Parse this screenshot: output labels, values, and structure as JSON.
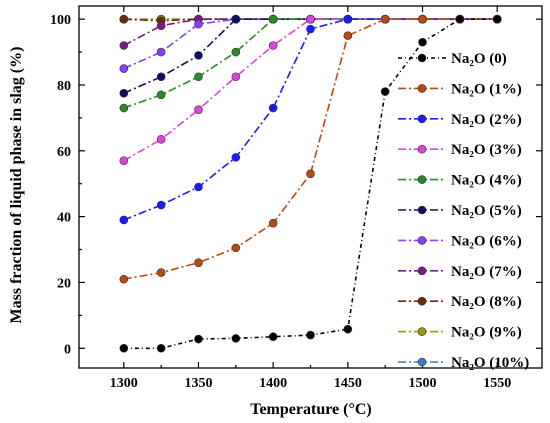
{
  "chart_data": {
    "type": "line",
    "title": "",
    "xlabel": "Temperature (°C)",
    "ylabel": "Mass fraction of liquid phase in slag (%)",
    "xlim": [
      1270,
      1580
    ],
    "ylim": [
      -6,
      104
    ],
    "xticks": [
      1300,
      1350,
      1400,
      1450,
      1500,
      1550
    ],
    "yticks": [
      0,
      20,
      40,
      60,
      80,
      100
    ],
    "legend_placement": "right",
    "grid": false,
    "series": [
      {
        "name": "Na₂O (0)",
        "color": "#000000",
        "dash": "4 3 1 3",
        "x": [
          1300,
          1325,
          1350,
          1375,
          1400,
          1425,
          1450,
          1475,
          1500,
          1525,
          1550
        ],
        "y": [
          0,
          0,
          2.8,
          3,
          3.5,
          4,
          5.8,
          78,
          93,
          100,
          100
        ]
      },
      {
        "name": "Na₂O (1%)",
        "color": "#b84a10",
        "dash": "8 3 2 3",
        "x": [
          1300,
          1325,
          1350,
          1375,
          1400,
          1425,
          1450,
          1475,
          1500,
          1525,
          1550
        ],
        "y": [
          21,
          23,
          26,
          30.5,
          38,
          53,
          95,
          100,
          100,
          100,
          100
        ]
      },
      {
        "name": "Na₂O (2%)",
        "color": "#1a1aff",
        "dash": "8 3 2 3",
        "x": [
          1300,
          1325,
          1350,
          1375,
          1400,
          1425,
          1450,
          1475,
          1500,
          1525,
          1550
        ],
        "y": [
          39,
          43.5,
          49,
          58,
          73,
          97,
          100,
          100,
          100,
          100,
          100
        ]
      },
      {
        "name": "Na₂O (3%)",
        "color": "#dd44dd",
        "dash": "8 3 2 3",
        "x": [
          1300,
          1325,
          1350,
          1375,
          1400,
          1425,
          1450,
          1475,
          1500,
          1525,
          1550
        ],
        "y": [
          57,
          63.5,
          72.5,
          82.5,
          92,
          100,
          100,
          100,
          100,
          100,
          100
        ]
      },
      {
        "name": "Na₂O (4%)",
        "color": "#2a8a2a",
        "dash": "8 3 2 3",
        "x": [
          1300,
          1325,
          1350,
          1375,
          1400,
          1425,
          1450,
          1475,
          1500,
          1525,
          1550
        ],
        "y": [
          73,
          77,
          82.5,
          90,
          100,
          100,
          100,
          100,
          100,
          100,
          100
        ]
      },
      {
        "name": "Na₂O (5%)",
        "color": "#101060",
        "dash": "8 3 2 3",
        "x": [
          1300,
          1325,
          1350,
          1375,
          1400,
          1425,
          1450,
          1475,
          1500,
          1525,
          1550
        ],
        "y": [
          77.5,
          82.5,
          89,
          100,
          100,
          100,
          100,
          100,
          100,
          100,
          100
        ]
      },
      {
        "name": "Na₂O (6%)",
        "color": "#8a3cff",
        "dash": "8 3 2 3",
        "x": [
          1300,
          1325,
          1350,
          1375,
          1400,
          1425,
          1450,
          1475,
          1500,
          1525,
          1550
        ],
        "y": [
          85,
          90,
          98.5,
          100,
          100,
          100,
          100,
          100,
          100,
          100,
          100
        ]
      },
      {
        "name": "Na₂O (7%)",
        "color": "#7a1a8a",
        "dash": "8 3 2 3",
        "x": [
          1300,
          1325,
          1350,
          1375,
          1400,
          1425,
          1450,
          1475,
          1500,
          1525,
          1550
        ],
        "y": [
          92,
          98,
          100,
          100,
          100,
          100,
          100,
          100,
          100,
          100,
          100
        ]
      },
      {
        "name": "Na₂O (8%)",
        "color": "#6a2a10",
        "dash": "8 3 2 3",
        "x": [
          1300,
          1325,
          1350,
          1375,
          1400,
          1425,
          1450,
          1475,
          1500,
          1525,
          1550
        ],
        "y": [
          100,
          99.5,
          100,
          100,
          100,
          100,
          100,
          100,
          100,
          100,
          100
        ]
      },
      {
        "name": "Na₂O (9%)",
        "color": "#9a9a10",
        "dash": "8 3 2 3",
        "x": [
          1300,
          1325,
          1350,
          1375,
          1400,
          1425,
          1450,
          1475,
          1500,
          1525,
          1550
        ],
        "y": [
          100,
          100,
          100,
          100,
          100,
          100,
          100,
          100,
          100,
          100,
          100
        ]
      },
      {
        "name": "Na₂O (10%)",
        "color": "#3a78c8",
        "dash": "8 3 2 3",
        "x": [
          1300,
          1325,
          1350,
          1375,
          1400,
          1425,
          1450,
          1475,
          1500,
          1525,
          1550
        ],
        "y": [
          100,
          100,
          100,
          100,
          100,
          100,
          100,
          100,
          100,
          100,
          100
        ]
      }
    ]
  }
}
